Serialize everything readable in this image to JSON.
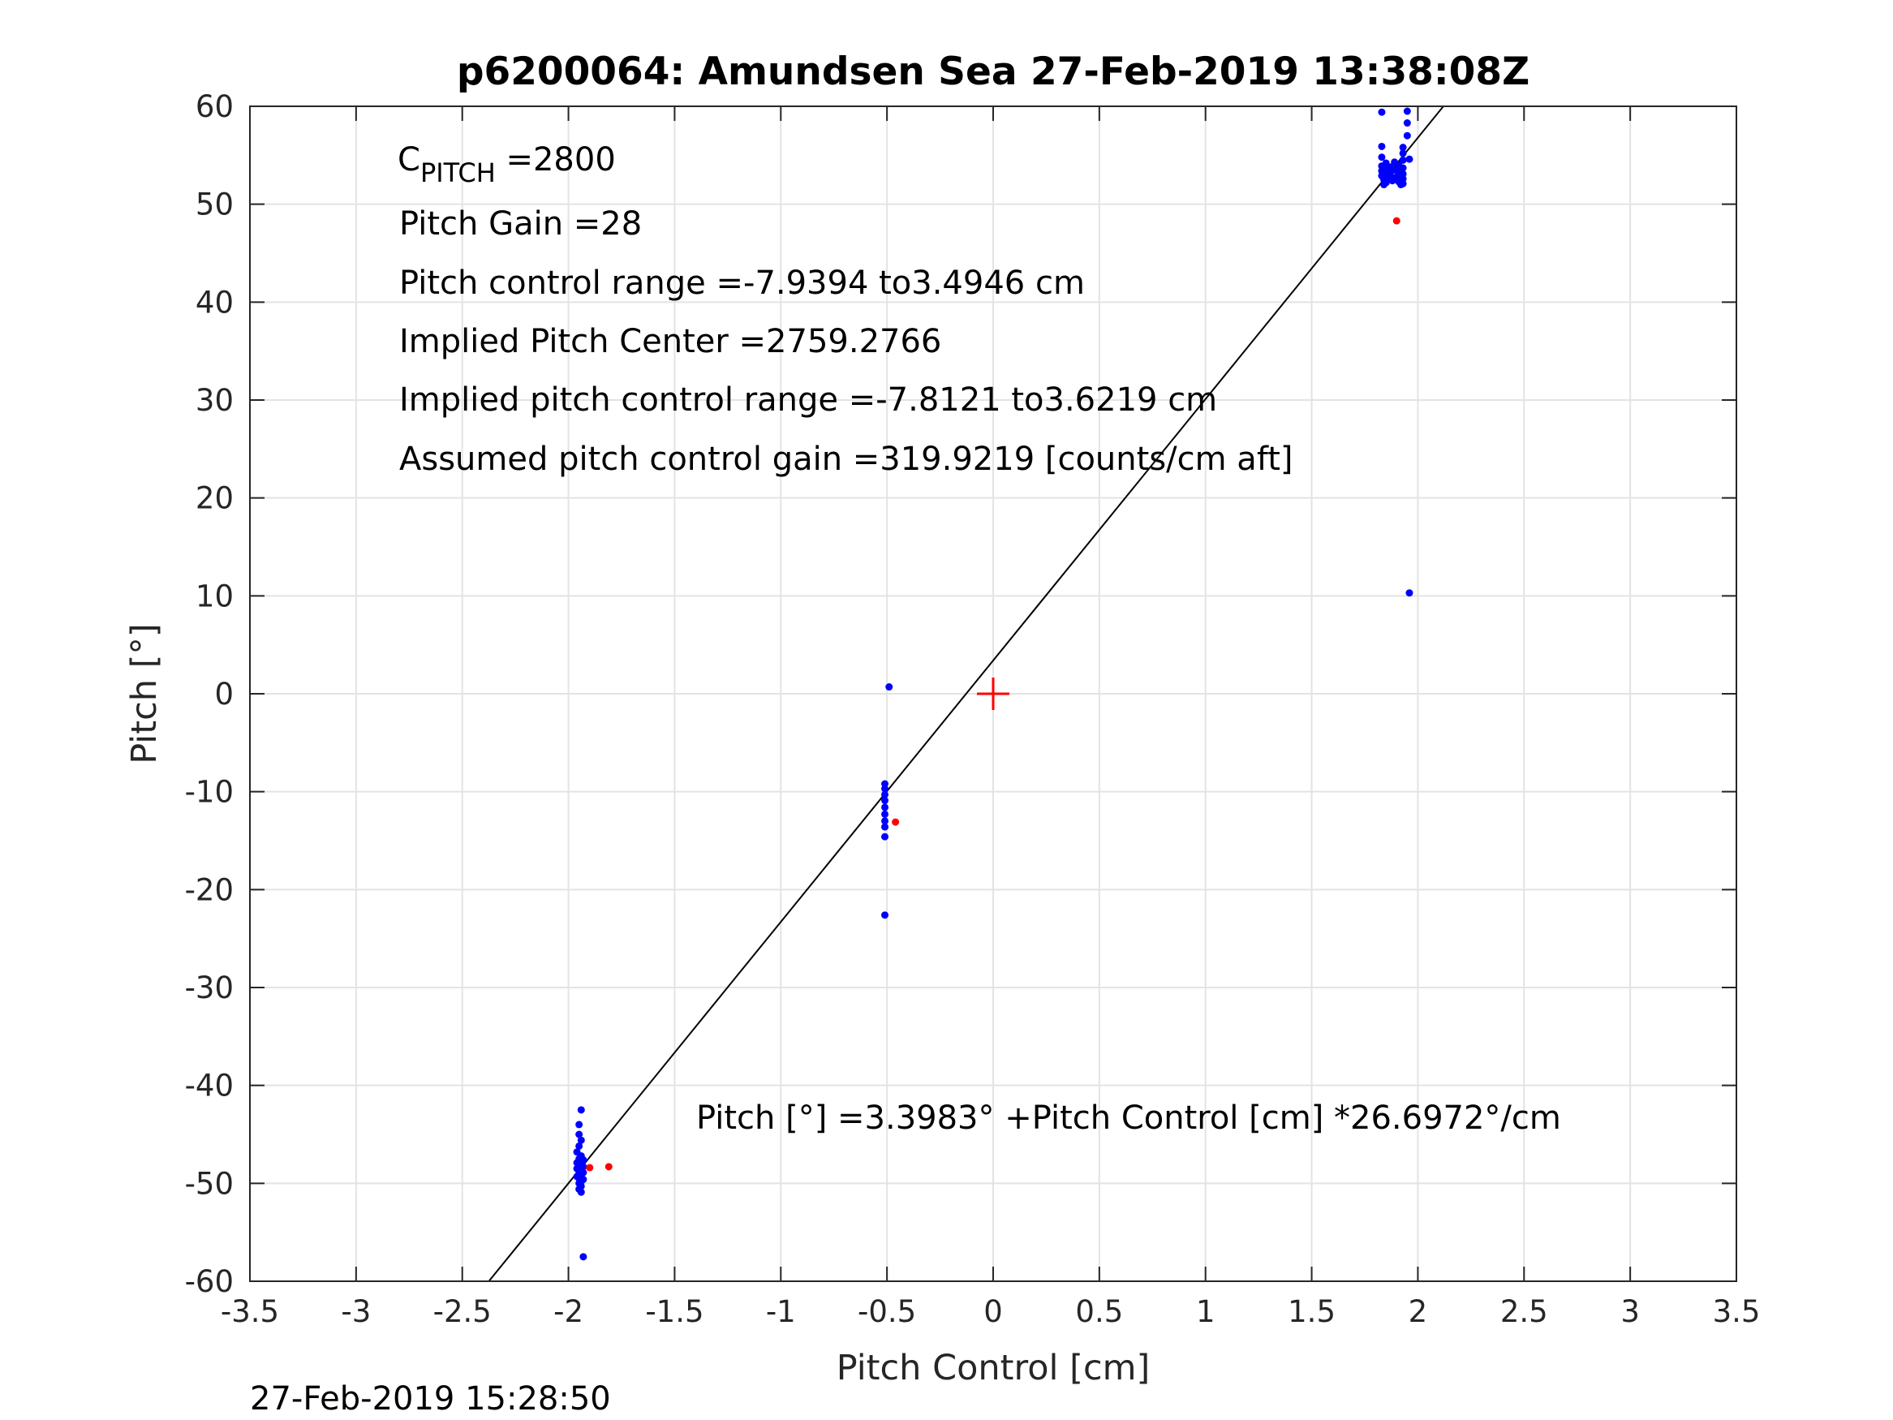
{
  "chart_data": {
    "type": "scatter",
    "title": "p6200064: Amundsen Sea 27-Feb-2019 13:38:08Z",
    "xlabel": "Pitch Control [cm]",
    "ylabel": "Pitch [°]",
    "xlim": [
      -3.5,
      3.5
    ],
    "ylim": [
      -60,
      60
    ],
    "xticks": [
      -3.5,
      -3,
      -2.5,
      -2,
      -1.5,
      -1,
      -0.5,
      0,
      0.5,
      1,
      1.5,
      2,
      2.5,
      3,
      3.5
    ],
    "xtick_labels": [
      "-3.5",
      "-3",
      "-2.5",
      "-2",
      "-1.5",
      "-1",
      "-0.5",
      "0",
      "0.5",
      "1",
      "1.5",
      "2",
      "2.5",
      "3",
      "3.5"
    ],
    "yticks": [
      -60,
      -50,
      -40,
      -30,
      -20,
      -10,
      0,
      10,
      20,
      30,
      40,
      50,
      60
    ],
    "ytick_labels": [
      "-60",
      "-50",
      "-40",
      "-30",
      "-20",
      "-10",
      "0",
      "10",
      "20",
      "30",
      "40",
      "50",
      "60"
    ],
    "grid": true,
    "fit_line": {
      "intercept": 3.3983,
      "slope": 26.6972
    },
    "center_marker": {
      "x": 0,
      "y": 0,
      "color": "#ff0000"
    },
    "series": [
      {
        "color": "#0000ff",
        "points": [
          [
            -1.94,
            -42.5
          ],
          [
            -1.95,
            -44.0
          ],
          [
            -1.95,
            -45.0
          ],
          [
            -1.94,
            -45.6
          ],
          [
            -1.95,
            -46.2
          ],
          [
            -1.96,
            -46.8
          ],
          [
            -1.94,
            -47.2
          ],
          [
            -1.95,
            -47.5
          ],
          [
            -1.93,
            -47.6
          ],
          [
            -1.96,
            -47.9
          ],
          [
            -1.94,
            -48.0
          ],
          [
            -1.95,
            -48.2
          ],
          [
            -1.93,
            -48.3
          ],
          [
            -1.96,
            -48.5
          ],
          [
            -1.94,
            -48.6
          ],
          [
            -1.95,
            -48.8
          ],
          [
            -1.93,
            -48.9
          ],
          [
            -1.94,
            -49.1
          ],
          [
            -1.96,
            -49.3
          ],
          [
            -1.95,
            -49.5
          ],
          [
            -1.93,
            -49.6
          ],
          [
            -1.94,
            -49.8
          ],
          [
            -1.95,
            -50.0
          ],
          [
            -1.94,
            -50.3
          ],
          [
            -1.95,
            -50.6
          ],
          [
            -1.94,
            -50.9
          ],
          [
            -1.93,
            -57.5
          ],
          [
            -0.49,
            0.7
          ],
          [
            -0.51,
            -9.2
          ],
          [
            -0.51,
            -9.7
          ],
          [
            -0.51,
            -10.3
          ],
          [
            -0.51,
            -10.9
          ],
          [
            -0.51,
            -11.6
          ],
          [
            -0.51,
            -12.3
          ],
          [
            -0.51,
            -13.0
          ],
          [
            -0.51,
            -13.6
          ],
          [
            -0.51,
            -14.6
          ],
          [
            -0.51,
            -22.6
          ],
          [
            1.83,
            59.4
          ],
          [
            1.95,
            59.5
          ],
          [
            1.95,
            58.3
          ],
          [
            1.95,
            57.0
          ],
          [
            1.83,
            55.9
          ],
          [
            1.93,
            55.8
          ],
          [
            1.93,
            55.2
          ],
          [
            1.83,
            54.8
          ],
          [
            1.96,
            54.6
          ],
          [
            1.93,
            54.5
          ],
          [
            1.89,
            54.3
          ],
          [
            1.85,
            54.2
          ],
          [
            1.91,
            54.0
          ],
          [
            1.83,
            53.9
          ],
          [
            1.87,
            53.8
          ],
          [
            1.93,
            53.7
          ],
          [
            1.86,
            53.6
          ],
          [
            1.89,
            53.5
          ],
          [
            1.83,
            53.4
          ],
          [
            1.91,
            53.3
          ],
          [
            1.85,
            53.2
          ],
          [
            1.93,
            53.1
          ],
          [
            1.87,
            53.0
          ],
          [
            1.83,
            52.9
          ],
          [
            1.9,
            52.8
          ],
          [
            1.86,
            52.7
          ],
          [
            1.93,
            52.6
          ],
          [
            1.84,
            52.5
          ],
          [
            1.88,
            52.4
          ],
          [
            1.91,
            52.3
          ],
          [
            1.85,
            52.2
          ],
          [
            1.93,
            52.1
          ],
          [
            1.84,
            52.0
          ],
          [
            1.92,
            52.0
          ],
          [
            1.96,
            10.3
          ]
        ]
      },
      {
        "color": "#ff0000",
        "points": [
          [
            -1.9,
            -48.4
          ],
          [
            -1.81,
            -48.3
          ],
          [
            -0.46,
            -13.1
          ],
          [
            1.9,
            48.3
          ]
        ]
      }
    ],
    "annotations": {
      "c_pitch_base": "C",
      "c_pitch_sub": "PITCH",
      "c_pitch_val": " =2800",
      "pitch_gain": "Pitch Gain =28",
      "control_range": "Pitch control range =-7.9394 to3.4946 cm",
      "implied_center": "Implied Pitch Center =2759.2766",
      "implied_range": "Implied pitch control range =-7.8121 to3.6219 cm",
      "assumed_gain": "Assumed pitch control gain =319.9219 [counts/cm aft]",
      "fit_equation": "Pitch [°] =3.3983° +Pitch Control [cm] *26.6972°/cm"
    },
    "footer_timestamp": "27-Feb-2019 15:28:50"
  }
}
